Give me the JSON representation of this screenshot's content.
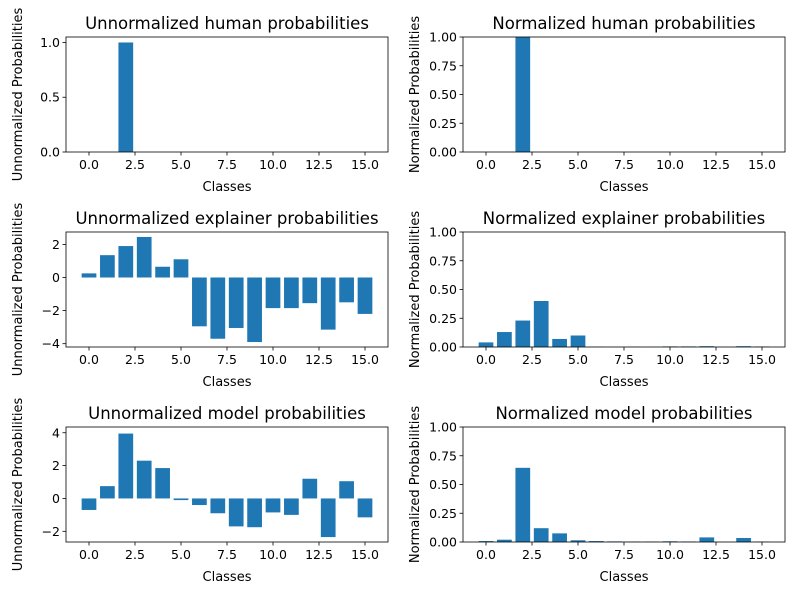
{
  "chart_data": [
    {
      "type": "bar",
      "title": "Unnormalized human probabilities",
      "xlabel": "Classes",
      "ylabel": "Unnormalized Probabilities",
      "x": [
        0,
        1,
        2,
        3,
        4,
        5,
        6,
        7,
        8,
        9,
        10,
        11,
        12,
        13,
        14,
        15
      ],
      "values": [
        0,
        0,
        1.0,
        0,
        0,
        0,
        0,
        0,
        0,
        0,
        0,
        0,
        0,
        0,
        0,
        0
      ],
      "xlim": [
        -1.25,
        16.25
      ],
      "ylim": [
        0,
        1.05
      ],
      "xticks": [
        0,
        2.5,
        5,
        7.5,
        10,
        12.5,
        15
      ],
      "xtick_labels": [
        "0.0",
        "2.5",
        "5.0",
        "7.5",
        "10.0",
        "12.5",
        "15.0"
      ],
      "yticks": [
        0,
        0.5,
        1.0
      ],
      "ytick_labels": [
        "0.0",
        "0.5",
        "1.0"
      ],
      "color": "#1f77b4"
    },
    {
      "type": "bar",
      "title": "Normalized human probabilities",
      "xlabel": "Classes",
      "ylabel": "Normalized Probabilities",
      "x": [
        0,
        1,
        2,
        3,
        4,
        5,
        6,
        7,
        8,
        9,
        10,
        11,
        12,
        13,
        14,
        15
      ],
      "values": [
        0,
        0,
        1.0,
        0,
        0,
        0,
        0,
        0,
        0,
        0,
        0,
        0,
        0,
        0,
        0,
        0
      ],
      "xlim": [
        -1.25,
        16.25
      ],
      "ylim": [
        0,
        1.0
      ],
      "xticks": [
        0,
        2.5,
        5,
        7.5,
        10,
        12.5,
        15
      ],
      "xtick_labels": [
        "0.0",
        "2.5",
        "5.0",
        "7.5",
        "10.0",
        "12.5",
        "15.0"
      ],
      "yticks": [
        0,
        0.25,
        0.5,
        0.75,
        1.0
      ],
      "ytick_labels": [
        "0.00",
        "0.25",
        "0.50",
        "0.75",
        "1.00"
      ],
      "color": "#1f77b4"
    },
    {
      "type": "bar",
      "title": "Unnormalized explainer probabilities",
      "xlabel": "Classes",
      "ylabel": "Unnormalized Probabilities",
      "x": [
        0,
        1,
        2,
        3,
        4,
        5,
        6,
        7,
        8,
        9,
        10,
        11,
        12,
        13,
        14,
        15
      ],
      "values": [
        0.25,
        1.35,
        1.9,
        2.45,
        0.65,
        1.1,
        -2.95,
        -3.7,
        -3.05,
        -3.9,
        -1.85,
        -1.85,
        -1.55,
        -3.15,
        -1.5,
        -2.2
      ],
      "xlim": [
        -1.25,
        16.25
      ],
      "ylim": [
        -4.2,
        2.75
      ],
      "xticks": [
        0,
        2.5,
        5,
        7.5,
        10,
        12.5,
        15
      ],
      "xtick_labels": [
        "0.0",
        "2.5",
        "5.0",
        "7.5",
        "10.0",
        "12.5",
        "15.0"
      ],
      "yticks": [
        -4,
        -2,
        0,
        2
      ],
      "ytick_labels": [
        "−4",
        "−2",
        "0",
        "2"
      ],
      "color": "#1f77b4"
    },
    {
      "type": "bar",
      "title": "Normalized explainer probabilities",
      "xlabel": "Classes",
      "ylabel": "Normalized Probabilities",
      "x": [
        0,
        1,
        2,
        3,
        4,
        5,
        6,
        7,
        8,
        9,
        10,
        11,
        12,
        13,
        14,
        15
      ],
      "values": [
        0.04,
        0.13,
        0.23,
        0.4,
        0.07,
        0.1,
        0.002,
        0.001,
        0.002,
        0.001,
        0.005,
        0.005,
        0.007,
        0.001,
        0.007,
        0.004
      ],
      "xlim": [
        -1.25,
        16.25
      ],
      "ylim": [
        0,
        1.0
      ],
      "xticks": [
        0,
        2.5,
        5,
        7.5,
        10,
        12.5,
        15
      ],
      "xtick_labels": [
        "0.0",
        "2.5",
        "5.0",
        "7.5",
        "10.0",
        "12.5",
        "15.0"
      ],
      "yticks": [
        0,
        0.25,
        0.5,
        0.75,
        1.0
      ],
      "ytick_labels": [
        "0.00",
        "0.25",
        "0.50",
        "0.75",
        "1.00"
      ],
      "color": "#1f77b4"
    },
    {
      "type": "bar",
      "title": "Unnormalized model probabilities",
      "xlabel": "Classes",
      "ylabel": "Unnormalized Probabilities",
      "x": [
        0,
        1,
        2,
        3,
        4,
        5,
        6,
        7,
        8,
        9,
        10,
        11,
        12,
        13,
        14,
        15
      ],
      "values": [
        -0.7,
        0.75,
        3.95,
        2.3,
        1.85,
        -0.1,
        -0.4,
        -0.9,
        -1.7,
        -1.75,
        -0.85,
        -1.0,
        1.2,
        -2.35,
        1.05,
        -1.15
      ],
      "xlim": [
        -1.25,
        16.25
      ],
      "ylim": [
        -2.65,
        4.35
      ],
      "xticks": [
        0,
        2.5,
        5,
        7.5,
        10,
        12.5,
        15
      ],
      "xtick_labels": [
        "0.0",
        "2.5",
        "5.0",
        "7.5",
        "10.0",
        "12.5",
        "15.0"
      ],
      "yticks": [
        -2,
        0,
        2,
        4
      ],
      "ytick_labels": [
        "−2",
        "0",
        "2",
        "4"
      ],
      "color": "#1f77b4"
    },
    {
      "type": "bar",
      "title": "Normalized model probabilities",
      "xlabel": "Classes",
      "ylabel": "Normalized Probabilities",
      "x": [
        0,
        1,
        2,
        3,
        4,
        5,
        6,
        7,
        8,
        9,
        10,
        11,
        12,
        13,
        14,
        15
      ],
      "values": [
        0.008,
        0.02,
        0.645,
        0.12,
        0.075,
        0.015,
        0.008,
        0.005,
        0.003,
        0.003,
        0.006,
        0.004,
        0.04,
        0.001,
        0.035,
        0.003
      ],
      "xlim": [
        -1.25,
        16.25
      ],
      "ylim": [
        0,
        1.0
      ],
      "xticks": [
        0,
        2.5,
        5,
        7.5,
        10,
        12.5,
        15
      ],
      "xtick_labels": [
        "0.0",
        "2.5",
        "5.0",
        "7.5",
        "10.0",
        "12.5",
        "15.0"
      ],
      "yticks": [
        0,
        0.25,
        0.5,
        0.75,
        1.0
      ],
      "ytick_labels": [
        "0.00",
        "0.25",
        "0.50",
        "0.75",
        "1.00"
      ],
      "color": "#1f77b4"
    }
  ]
}
